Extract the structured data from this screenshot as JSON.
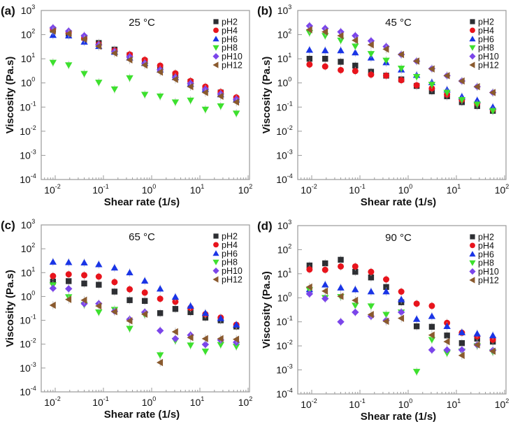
{
  "chart_data": [
    {
      "type": "scatter",
      "panel_label": "(a)",
      "annotation": "25 °C",
      "xlabel": "Shear rate (1/s)",
      "ylabel": "Viscosity (Pa.s)",
      "xscale": "log",
      "yscale": "log",
      "xlim": [
        0.005,
        100
      ],
      "ylim": [
        0.0001,
        1000
      ],
      "xticks": [
        "-2",
        "-1",
        "0",
        "1",
        "2"
      ],
      "yticks": [
        "-4",
        "-3",
        "-2",
        "-1",
        "0",
        "1",
        "2",
        "3"
      ],
      "legend_position": "top-right",
      "x": [
        0.009,
        0.019,
        0.04,
        0.08,
        0.17,
        0.35,
        0.72,
        1.5,
        3.1,
        6.4,
        13,
        27,
        57
      ],
      "series": [
        {
          "name": "pH2",
          "values": [
            160,
            110,
            75,
            45,
            24,
            14,
            8,
            4.5,
            2.2,
            1.1,
            0.6,
            0.4,
            0.22
          ]
        },
        {
          "name": "pH4",
          "values": [
            170,
            120,
            70,
            40,
            22,
            15,
            9,
            5.2,
            2.5,
            1.2,
            0.7,
            0.42,
            0.25
          ]
        },
        {
          "name": "pH6",
          "values": [
            95,
            90,
            50,
            33,
            19,
            11,
            6.5,
            3.5,
            1.7,
            0.9,
            0.55,
            0.33,
            0.2
          ]
        },
        {
          "name": "pH8",
          "values": [
            7,
            5.5,
            2.4,
            1.05,
            0.55,
            1.6,
            0.33,
            0.28,
            0.16,
            0.19,
            0.08,
            0.11,
            0.055
          ]
        },
        {
          "name": "pH10",
          "values": [
            190,
            140,
            90,
            38,
            20,
            12,
            6.5,
            3.5,
            1.7,
            0.95,
            0.55,
            0.35,
            0.21
          ]
        },
        {
          "name": "pH12",
          "values": [
            140,
            110,
            65,
            33,
            17,
            9,
            5.5,
            2.8,
            1.4,
            0.7,
            0.4,
            0.28,
            0.16
          ]
        }
      ]
    },
    {
      "type": "scatter",
      "panel_label": "(b)",
      "annotation": "45 °C",
      "xlabel": "Shear rate (1/s)",
      "ylabel": "Viscosity (Pa.s)",
      "xscale": "log",
      "yscale": "log",
      "xlim": [
        0.005,
        100
      ],
      "ylim": [
        0.0001,
        1000
      ],
      "xticks": [
        "-2",
        "-1",
        "0",
        "1",
        "2"
      ],
      "yticks": [
        "-4",
        "-3",
        "-2",
        "-1",
        "0",
        "1",
        "2",
        "3"
      ],
      "legend_position": "top-right",
      "x": [
        0.009,
        0.019,
        0.04,
        0.08,
        0.17,
        0.35,
        0.72,
        1.5,
        3.1,
        6.4,
        13,
        27,
        57
      ],
      "series": [
        {
          "name": "pH2",
          "values": [
            10,
            10,
            7.5,
            5.2,
            2.9,
            2.0,
            1.4,
            0.75,
            0.45,
            0.28,
            0.16,
            0.11,
            0.07
          ]
        },
        {
          "name": "pH4",
          "values": [
            5.8,
            4.8,
            3.4,
            3.1,
            2.2,
            2.0,
            1.3,
            0.8,
            0.6,
            0.33,
            0.2,
            0.14,
            0.08
          ]
        },
        {
          "name": "pH6",
          "values": [
            23,
            22,
            22,
            18,
            11,
            7,
            3.5,
            2.1,
            1.05,
            0.52,
            0.27,
            0.19,
            0.1
          ]
        },
        {
          "name": "pH8",
          "values": [
            120,
            90,
            58,
            33,
            16,
            8.5,
            4,
            1.8,
            0.85,
            0.4,
            0.2,
            0.13,
            0.07
          ]
        },
        {
          "name": "pH10",
          "values": [
            230,
            180,
            130,
            90,
            55,
            32,
            15,
            8,
            3.9,
            2.0,
            1.2,
            0.7,
            0.4
          ]
        },
        {
          "name": "pH12",
          "values": [
            160,
            130,
            90,
            58,
            38,
            25,
            15,
            8,
            3.8,
            2.0,
            1.2,
            0.7,
            0.4
          ]
        }
      ]
    },
    {
      "type": "scatter",
      "panel_label": "(c)",
      "annotation": "65 °C",
      "xlabel": "Shear rate (1/s)",
      "ylabel": "Viscosity (Pa.s)",
      "xscale": "log",
      "yscale": "log",
      "xlim": [
        0.005,
        100
      ],
      "ylim": [
        0.0001,
        1000
      ],
      "xticks": [
        "-2",
        "-1",
        "0",
        "1",
        "2"
      ],
      "yticks": [
        "-4",
        "-3",
        "-2",
        "-1",
        "0",
        "1",
        "2",
        "3"
      ],
      "legend_position": "top-right",
      "x": [
        0.009,
        0.019,
        0.04,
        0.08,
        0.17,
        0.35,
        0.72,
        1.5,
        3.1,
        6.4,
        13,
        27,
        57
      ],
      "series": [
        {
          "name": "pH2",
          "values": [
            4.2,
            4.4,
            3.5,
            3.1,
            1.6,
            0.7,
            0.65,
            0.2,
            0.3,
            0.22,
            0.13,
            0.1,
            0.055
          ]
        },
        {
          "name": "pH4",
          "values": [
            7.2,
            8.5,
            7.8,
            6.8,
            4,
            2,
            1.45,
            0.8,
            0.6,
            0.33,
            0.18,
            0.13,
            0.065
          ]
        },
        {
          "name": "pH6",
          "values": [
            28,
            27,
            26,
            22,
            16,
            10,
            4.5,
            2.1,
            0.95,
            0.4,
            0.2,
            0.12,
            0.065
          ]
        },
        {
          "name": "pH8",
          "values": [
            3,
            0.95,
            0.45,
            0.22,
            0.28,
            0.045,
            0.17,
            0.0035,
            0.014,
            0.009,
            0.005,
            0.0095,
            0.008
          ]
        },
        {
          "name": "pH10",
          "values": [
            2.2,
            2.1,
            0.5,
            0.5,
            0.24,
            0.11,
            0.22,
            0.037,
            0.017,
            0.024,
            0.0097,
            0.015,
            0.012
          ]
        },
        {
          "name": "pH12",
          "values": [
            0.43,
            0.75,
            0.7,
            0.4,
            0.23,
            0.095,
            0.18,
            0.0017,
            0.033,
            0.019,
            0.017,
            0.017,
            0.016
          ]
        }
      ]
    },
    {
      "type": "scatter",
      "panel_label": "(d)",
      "annotation": "90 °C",
      "xlabel": "Shear rate (1/s)",
      "ylabel": "Viscosity (Pa.s)",
      "xscale": "log",
      "yscale": "log",
      "xlim": [
        0.005,
        100
      ],
      "ylim": [
        0.0001,
        1000
      ],
      "xticks": [
        "-2",
        "-1",
        "0",
        "1",
        "2"
      ],
      "yticks": [
        "-4",
        "-3",
        "-2",
        "-1",
        "0",
        "1",
        "2",
        "3"
      ],
      "legend_position": "top-right",
      "x": [
        0.009,
        0.019,
        0.04,
        0.08,
        0.17,
        0.35,
        0.72,
        1.5,
        3.1,
        6.4,
        13,
        27,
        57
      ],
      "series": [
        {
          "name": "pH2",
          "values": [
            22,
            27,
            38,
            12,
            7,
            2.8,
            0.65,
            0.065,
            0.062,
            0.027,
            0.013,
            0.02,
            0.015
          ]
        },
        {
          "name": "pH4",
          "values": [
            15,
            14.5,
            20,
            20,
            12,
            5.8,
            1.8,
            0.57,
            0.46,
            0.09,
            0.035,
            0.025,
            0.018
          ]
        },
        {
          "name": "pH6",
          "values": [
            2.2,
            3.5,
            2.6,
            2.2,
            1.8,
            1.8,
            0.85,
            0.13,
            0.17,
            0.065,
            0.036,
            0.032,
            0.027
          ]
        },
        {
          "name": "pH8",
          "values": [
            2.1,
            1.0,
            1.1,
            0.48,
            0.45,
            0.2,
            0.25,
            0.00085,
            0.018,
            0.005,
            0.006,
            0.01,
            0.0055
          ]
        },
        {
          "name": "pH10",
          "values": [
            1.45,
            0.92,
            0.1,
            0.25,
            0.17,
            0.115,
            0.25,
            null,
            0.0068,
            0.0068,
            0.0068,
            0.011,
            0.0065
          ]
        },
        {
          "name": "pH12",
          "values": [
            2.8,
            1.9,
            1.15,
            0.78,
            0.2,
            0.105,
            0.14,
            null,
            0.028,
            0.015,
            0.004,
            0.011,
            0.006
          ]
        }
      ]
    }
  ],
  "tick_base": "10",
  "colors": {
    "pH2": "#2d2f33",
    "pH4": "#e8141c",
    "pH6": "#1a35e6",
    "pH8": "#3de02e",
    "pH10": "#7b45ea",
    "pH12": "#8a5a2e",
    "frame": "#9a9a9a"
  },
  "markers": {
    "pH2": "square",
    "pH4": "circle",
    "pH6": "triangle-up",
    "pH8": "triangle-down",
    "pH10": "diamond",
    "pH12": "triangle-left"
  }
}
